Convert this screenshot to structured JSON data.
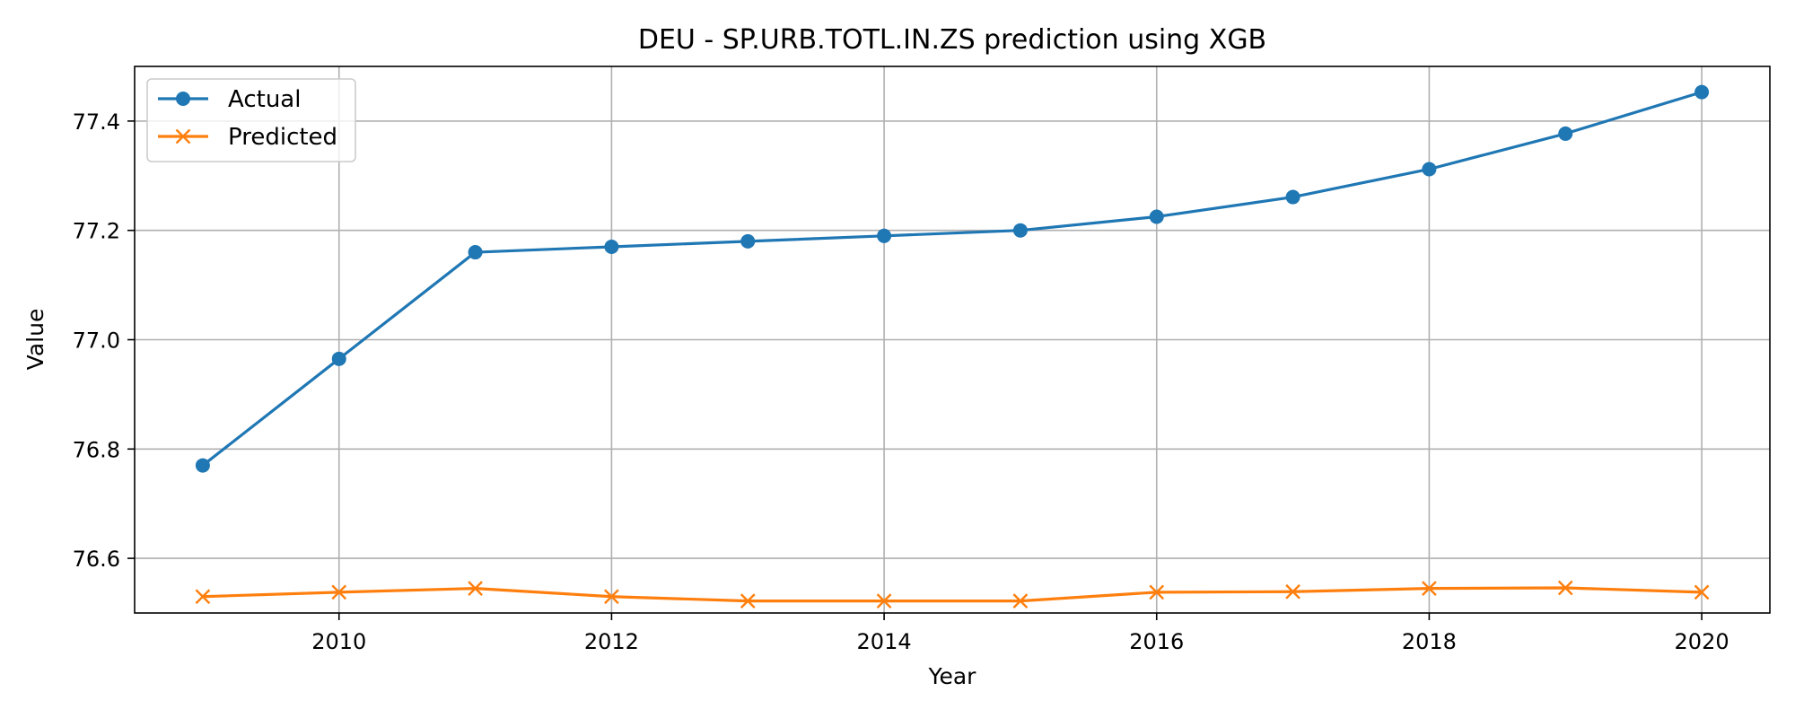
{
  "chart_data": {
    "type": "line",
    "title": "DEU - SP.URB.TOTL.IN.ZS prediction using XGB",
    "xlabel": "Year",
    "ylabel": "Value",
    "x": [
      2009,
      2010,
      2011,
      2012,
      2013,
      2014,
      2015,
      2016,
      2017,
      2018,
      2019,
      2020
    ],
    "xticks": [
      2010,
      2012,
      2014,
      2016,
      2018,
      2020
    ],
    "yticks": [
      76.6,
      76.8,
      77.0,
      77.2,
      77.4
    ],
    "ytick_labels": [
      "76.6",
      "76.8",
      "77.0",
      "77.2",
      "77.4"
    ],
    "xlim": [
      2008.5,
      2020.5
    ],
    "ylim": [
      76.5,
      77.5
    ],
    "grid": true,
    "legend_position": "top-left",
    "series": [
      {
        "name": "Actual",
        "color": "#1f77b4",
        "marker": "circle",
        "values": [
          76.77,
          76.965,
          77.16,
          77.17,
          77.18,
          77.19,
          77.2,
          77.225,
          77.261,
          77.312,
          77.377,
          77.453
        ]
      },
      {
        "name": "Predicted",
        "color": "#ff7f0e",
        "marker": "x",
        "values": [
          76.53,
          76.538,
          76.545,
          76.53,
          76.522,
          76.522,
          76.522,
          76.538,
          76.539,
          76.545,
          76.546,
          76.538
        ]
      }
    ]
  }
}
